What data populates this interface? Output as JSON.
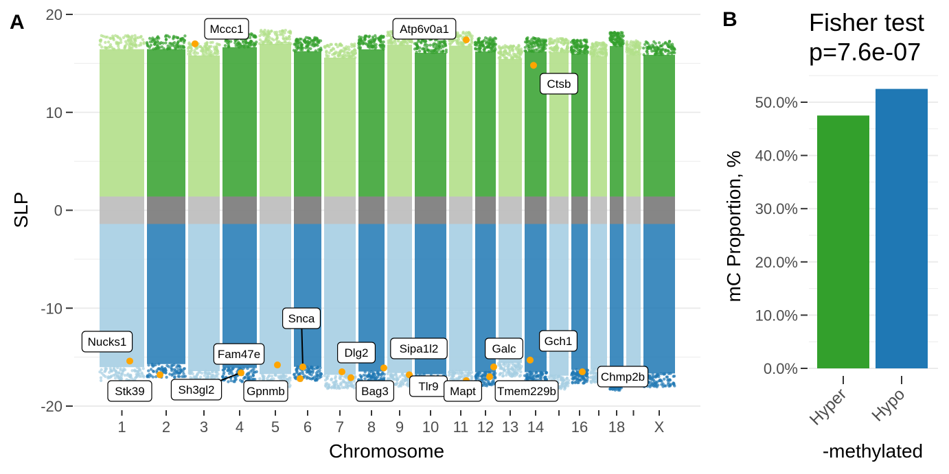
{
  "panels": {
    "a_letter": "A",
    "b_letter": "B"
  },
  "chart_data": [
    {
      "type": "scatter",
      "title": "",
      "xlabel": "Chromosome",
      "ylabel": "SLP",
      "ylim": [
        -20.5,
        20.5
      ],
      "y_ticks": [
        20,
        10,
        0,
        -10,
        -20
      ],
      "y_tick_labels": [
        "20",
        "10",
        "0",
        "-10",
        "-20"
      ],
      "x_ticks_labeled": [
        "1",
        "2",
        "3",
        "4",
        "5",
        "6",
        "7",
        "8",
        "9",
        "10",
        "11",
        "12",
        "13",
        "14",
        "16",
        "18",
        "X"
      ],
      "chromosome_order": [
        "1",
        "2",
        "3",
        "4",
        "5",
        "6",
        "7",
        "8",
        "9",
        "10",
        "11",
        "12",
        "13",
        "14",
        "15",
        "16",
        "17",
        "18",
        "19",
        "X"
      ],
      "grid": "horizontal",
      "colors": {
        "hyper_dark": "#33a02c",
        "hyper_light": "#b2df8a",
        "hypo_dark": "#1f78b4",
        "hypo_light": "#a6cee3",
        "neutral_dark": "#7f7f7f",
        "neutral_light": "#bfbfbf",
        "highlight": "#ffa500"
      },
      "highlighted_genes": [
        {
          "gene": "Mccc1",
          "chr": "3",
          "slp": 17.0
        },
        {
          "gene": "Atp6v0a1",
          "chr": "11",
          "slp": 17.4
        },
        {
          "gene": "Ctsb",
          "chr": "14",
          "slp": 14.8
        },
        {
          "gene": "Nucks1",
          "chr": "1",
          "slp": -15.4
        },
        {
          "gene": "Stk39",
          "chr": "2",
          "slp": -16.8
        },
        {
          "gene": "Sh3gl2",
          "chr": "4",
          "slp": -16.6
        },
        {
          "gene": "Fam47e",
          "chr": "5",
          "slp": -15.8
        },
        {
          "gene": "Gpnmb",
          "chr": "6",
          "slp": -17.2
        },
        {
          "gene": "Snca",
          "chr": "6",
          "slp": -16.0
        },
        {
          "gene": "Dlg2",
          "chr": "7",
          "slp": -16.5
        },
        {
          "gene": "Bag3",
          "chr": "7",
          "slp": -17.1
        },
        {
          "gene": "Sipa1l2",
          "chr": "8",
          "slp": -16.1
        },
        {
          "gene": "Tlr9",
          "chr": "9",
          "slp": -16.8
        },
        {
          "gene": "Mapt",
          "chr": "11",
          "slp": -17.4
        },
        {
          "gene": "Galc",
          "chr": "12",
          "slp": -16.0
        },
        {
          "gene": "Tmem229b",
          "chr": "12",
          "slp": -17.0
        },
        {
          "gene": "Gch1",
          "chr": "14",
          "slp": -15.3
        },
        {
          "gene": "Chmp2b",
          "chr": "16",
          "slp": -16.5
        }
      ]
    },
    {
      "type": "bar",
      "title": "Fisher test",
      "subtitle": "p=7.6e-07",
      "categories": [
        "Hyper",
        "Hypo"
      ],
      "values": [
        47.5,
        52.5
      ],
      "colors": [
        "#33a02c",
        "#1f78b4"
      ],
      "xlabel": "-methylated",
      "ylabel": "mC Proportion, %",
      "ylim": [
        0,
        55
      ],
      "y_ticks": [
        0,
        10,
        20,
        30,
        40,
        50
      ],
      "y_tick_labels": [
        "0.0%",
        "10.0%",
        "20.0%",
        "30.0%",
        "40.0%",
        "50.0%"
      ],
      "grid": "horizontal"
    }
  ]
}
